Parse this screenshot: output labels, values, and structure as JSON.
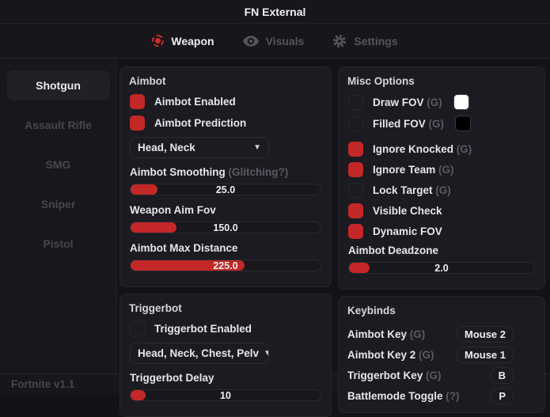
{
  "window": {
    "title": "FN External",
    "footer": "Fortnite v1.1"
  },
  "colors": {
    "accent": "#c32727",
    "draw_fov_swatch": "#ffffff",
    "filled_fov_swatch": "#000000"
  },
  "tabs": [
    {
      "label": "Weapon",
      "icon": "fov-crosshair-icon",
      "active": true
    },
    {
      "label": "Visuals",
      "icon": "eye-icon",
      "active": false
    },
    {
      "label": "Settings",
      "icon": "gear-icon",
      "active": false
    }
  ],
  "sidebar": {
    "items": [
      {
        "label": "Shotgun",
        "active": true
      },
      {
        "label": "Assault Rifle",
        "active": false
      },
      {
        "label": "SMG",
        "active": false
      },
      {
        "label": "Sniper",
        "active": false
      },
      {
        "label": "Pistol",
        "active": false
      }
    ]
  },
  "panels": {
    "aimbot": {
      "title": "Aimbot",
      "checks": [
        {
          "label": "Aimbot Enabled",
          "checked": true
        },
        {
          "label": "Aimbot Prediction",
          "checked": true
        }
      ],
      "dropdown": {
        "value": "Head, Neck",
        "arrow": "▼"
      },
      "sliders": [
        {
          "label": "Aimbot Smoothing",
          "hint": "(Glitching?)",
          "value": "25.0",
          "fill_pct": 14
        },
        {
          "label": "Weapon Aim Fov",
          "hint": "",
          "value": "150.0",
          "fill_pct": 24
        },
        {
          "label": "Aimbot Max Distance",
          "hint": "",
          "value": "225.0",
          "fill_pct": 60
        }
      ]
    },
    "triggerbot": {
      "title": "Triggerbot",
      "checks": [
        {
          "label": "Triggerbot Enabled",
          "checked": false
        }
      ],
      "dropdown": {
        "value": "Head, Neck, Chest, Pelv",
        "arrow": "▼"
      },
      "sliders": [
        {
          "label": "Triggerbot Delay",
          "hint": "",
          "value": "10",
          "fill_pct": 8
        }
      ]
    },
    "misc": {
      "title": "Misc Options",
      "rows": [
        {
          "label": "Draw FOV",
          "hint": "(G)",
          "checked": false,
          "swatch": "#ffffff"
        },
        {
          "label": "Filled FOV",
          "hint": "(G)",
          "checked": false,
          "swatch": "#000000"
        },
        {
          "label": "Ignore Knocked",
          "hint": "(G)",
          "checked": true
        },
        {
          "label": "Ignore Team",
          "hint": "(G)",
          "checked": true
        },
        {
          "label": "Lock Target",
          "hint": "(G)",
          "checked": false
        },
        {
          "label": "Visible Check",
          "hint": "",
          "checked": true
        },
        {
          "label": "Dynamic FOV",
          "hint": "",
          "checked": true
        }
      ],
      "slider": {
        "label": "Aimbot Deadzone",
        "value": "2.0",
        "fill_pct": 11
      }
    },
    "keybinds": {
      "title": "Keybinds",
      "rows": [
        {
          "label": "Aimbot Key",
          "hint": "(G)",
          "key": "Mouse 2"
        },
        {
          "label": "Aimbot Key 2",
          "hint": "(G)",
          "key": "Mouse 1"
        },
        {
          "label": "Triggerbot Key",
          "hint": "(G)",
          "key": "B"
        },
        {
          "label": "Battlemode Toggle",
          "hint": "(?)",
          "key": "P"
        }
      ]
    }
  }
}
